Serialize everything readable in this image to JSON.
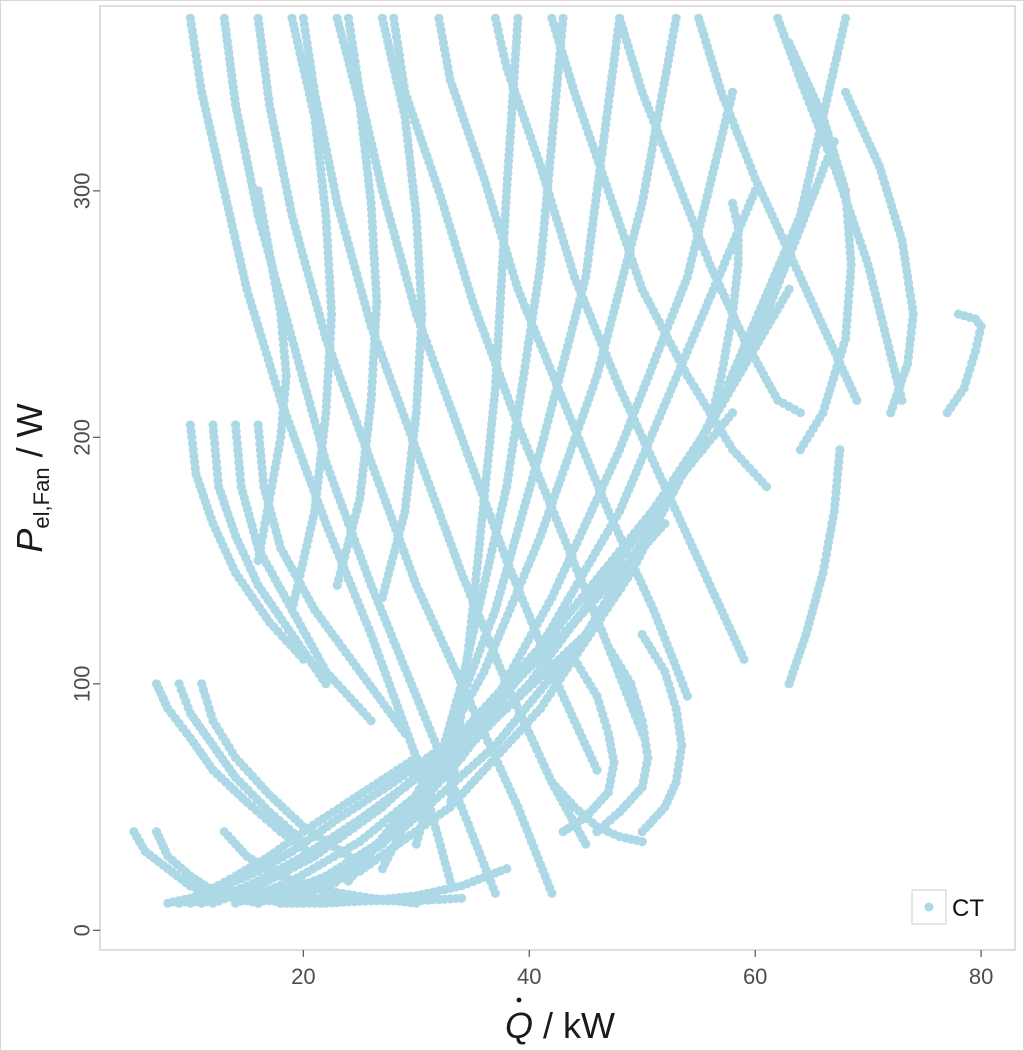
{
  "chart_data": {
    "type": "scatter",
    "xlabel": {
      "base": "Q",
      "rest": " / kW"
    },
    "ylabel": {
      "base": "P",
      "sub": "el,Fan",
      "rest": " / W"
    },
    "xlim": [
      2,
      83
    ],
    "ylim": [
      -8,
      375
    ],
    "xticks": [
      20,
      40,
      60,
      80
    ],
    "yticks": [
      0,
      100,
      200,
      300
    ],
    "grid": false,
    "legend": {
      "position": "bottom-right",
      "entries": [
        {
          "name": "CT",
          "color": "#add8e6"
        }
      ]
    },
    "series": [
      {
        "name": "CT",
        "color": "#add8e6",
        "curves": [
          {
            "x": [
              8,
              10,
              12,
              14,
              17,
              20,
              24,
              30
            ],
            "y": [
              11,
              13,
              17,
              22,
              30,
              40,
              52,
              70
            ]
          },
          {
            "x": [
              9,
              11,
              13,
              16,
              19,
              23,
              28,
              34
            ],
            "y": [
              11,
              13,
              18,
              24,
              32,
              45,
              60,
              80
            ]
          },
          {
            "x": [
              10,
              13,
              16,
              20,
              25,
              31,
              38,
              45
            ],
            "y": [
              11,
              14,
              20,
              30,
              45,
              65,
              90,
              120
            ]
          },
          {
            "x": [
              11,
              14,
              18,
              23,
              29,
              36,
              44,
              52
            ],
            "y": [
              11,
              15,
              24,
              38,
              58,
              88,
              125,
              165
            ]
          },
          {
            "x": [
              12,
              16,
              21,
              27,
              34,
              42,
              50,
              58
            ],
            "y": [
              11,
              18,
              30,
              50,
              80,
              120,
              165,
              210
            ]
          },
          {
            "x": [
              14,
              19,
              25,
              32,
              40,
              48,
              56,
              63
            ],
            "y": [
              11,
              20,
              36,
              62,
              100,
              150,
              205,
              260
            ]
          },
          {
            "x": [
              16,
              22,
              29,
              37,
              45,
              53,
              61,
              67
            ],
            "y": [
              11,
              22,
              42,
              75,
              120,
              180,
              250,
              320
            ]
          },
          {
            "x": [
              18,
              25,
              33,
              41,
              49,
              57,
              64,
              68
            ],
            "y": [
              11,
              24,
              50,
              90,
              145,
              215,
              290,
              370
            ]
          },
          {
            "x": [
              20,
              27,
              34,
              41,
              48,
              54,
              60
            ],
            "y": [
              14,
              35,
              70,
              115,
              170,
              235,
              300
            ]
          },
          {
            "x": [
              22,
              29,
              36,
              42,
              48,
              54,
              58
            ],
            "y": [
              16,
              45,
              85,
              135,
              195,
              265,
              340
            ]
          },
          {
            "x": [
              24,
              30,
              36,
              41,
              46,
              50,
              53
            ],
            "y": [
              20,
              55,
              105,
              160,
              225,
              295,
              370
            ]
          },
          {
            "x": [
              27,
              32,
              37,
              41,
              45,
              48
            ],
            "y": [
              25,
              70,
              130,
              195,
              265,
              370
            ]
          },
          {
            "x": [
              30,
              34,
              38,
              41,
              43
            ],
            "y": [
              35,
              100,
              180,
              270,
              370
            ]
          },
          {
            "x": [
              33,
              35,
              37,
              38,
              39
            ],
            "y": [
              50,
              130,
              220,
              300,
              370
            ]
          },
          {
            "x": [
              10,
              11,
              13,
              15,
              18,
              22,
              26,
              30,
              33
            ],
            "y": [
              370,
              340,
              300,
              260,
              215,
              165,
              120,
              70,
              20
            ]
          },
          {
            "x": [
              13,
              14,
              16,
              19,
              22,
              26,
              30,
              34,
              37
            ],
            "y": [
              370,
              335,
              290,
              240,
              190,
              140,
              95,
              50,
              15
            ]
          },
          {
            "x": [
              16,
              17,
              19,
              22,
              26,
              30,
              35,
              39,
              42
            ],
            "y": [
              370,
              335,
              290,
              240,
              190,
              140,
              90,
              50,
              15
            ]
          },
          {
            "x": [
              20,
              21,
              23,
              26,
              30,
              34,
              38,
              42,
              45
            ],
            "y": [
              370,
              340,
              295,
              245,
              195,
              145,
              100,
              60,
              35
            ]
          },
          {
            "x": [
              24,
              25,
              27,
              30,
              34,
              38,
              42,
              46
            ],
            "y": [
              370,
              340,
              300,
              250,
              200,
              150,
              105,
              65
            ]
          },
          {
            "x": [
              28,
              29,
              32,
              35,
              39,
              43,
              47,
              50
            ],
            "y": [
              370,
              340,
              300,
              255,
              205,
              160,
              115,
              80
            ]
          },
          {
            "x": [
              32,
              33,
              36,
              39,
              43,
              47,
              51,
              54
            ],
            "y": [
              370,
              345,
              305,
              260,
              215,
              170,
              130,
              95
            ]
          },
          {
            "x": [
              37,
              38,
              41,
              44,
              48,
              52,
              56,
              59
            ],
            "y": [
              370,
              350,
              310,
              265,
              220,
              180,
              140,
              110
            ]
          },
          {
            "x": [
              42,
              44,
              47,
              50,
              54,
              58,
              61
            ],
            "y": [
              370,
              340,
              300,
              260,
              225,
              195,
              180
            ]
          },
          {
            "x": [
              48,
              50,
              53,
              56,
              59,
              62,
              64
            ],
            "y": [
              370,
              340,
              305,
              270,
              240,
              215,
              210
            ]
          },
          {
            "x": [
              55,
              57,
              60,
              63,
              66,
              69
            ],
            "y": [
              370,
              340,
              305,
              275,
              245,
              215
            ]
          },
          {
            "x": [
              62,
              64,
              67,
              70,
              73
            ],
            "y": [
              370,
              345,
              310,
              270,
              215
            ]
          },
          {
            "x": [
              10,
              10.5,
              12,
              14,
              17,
              20
            ],
            "y": [
              205,
              185,
              165,
              145,
              125,
              110
            ]
          },
          {
            "x": [
              12,
              12.5,
              14,
              16,
              19,
              22
            ],
            "y": [
              205,
              180,
              160,
              140,
              120,
              100
            ]
          },
          {
            "x": [
              14,
              14.5,
              16,
              19,
              22,
              26
            ],
            "y": [
              205,
              180,
              155,
              130,
              105,
              85
            ]
          },
          {
            "x": [
              16,
              16.5,
              18,
              21,
              25,
              29
            ],
            "y": [
              205,
              180,
              155,
              130,
              105,
              80
            ]
          },
          {
            "x": [
              7,
              8,
              10,
              12,
              15,
              18,
              21
            ],
            "y": [
              100,
              90,
              78,
              65,
              52,
              40,
              30
            ]
          },
          {
            "x": [
              9,
              10,
              12,
              14,
              17,
              20
            ],
            "y": [
              100,
              88,
              75,
              62,
              48,
              36
            ]
          },
          {
            "x": [
              11,
              12,
              14,
              17,
              20,
              24
            ],
            "y": [
              100,
              85,
              70,
              55,
              42,
              30
            ]
          },
          {
            "x": [
              5,
              6,
              8,
              10,
              13,
              16
            ],
            "y": [
              40,
              32,
              25,
              18,
              14,
              11
            ]
          },
          {
            "x": [
              7,
              8,
              10,
              12,
              15,
              19
            ],
            "y": [
              40,
              30,
              22,
              16,
              13,
              11
            ]
          },
          {
            "x": [
              13,
              15,
              18,
              22,
              26,
              30
            ],
            "y": [
              40,
              30,
              22,
              16,
              13,
              11
            ]
          },
          {
            "x": [
              19,
              21,
              22,
              22.5,
              22,
              21,
              19
            ],
            "y": [
              370,
              330,
              290,
              250,
              210,
              170,
              130
            ]
          },
          {
            "x": [
              23,
              25,
              26,
              26.5,
              26,
              25,
              23
            ],
            "y": [
              370,
              335,
              295,
              255,
              215,
              175,
              140
            ]
          },
          {
            "x": [
              27,
              29,
              30,
              30.5,
              30,
              29,
              27
            ],
            "y": [
              370,
              330,
              290,
              250,
              210,
              170,
              135
            ]
          },
          {
            "x": [
              16,
              17,
              18,
              18.5,
              18,
              17,
              16
            ],
            "y": [
              300,
              275,
              250,
              225,
              200,
              175,
              150
            ]
          },
          {
            "x": [
              63,
              66,
              68,
              68.5,
              68,
              66,
              64
            ],
            "y": [
              360,
              330,
              300,
              270,
              240,
              210,
              195
            ]
          },
          {
            "x": [
              68,
              71,
              73,
              74,
              73.5,
              72
            ],
            "y": [
              340,
              310,
              280,
              250,
              230,
              210
            ]
          },
          {
            "x": [
              77,
              78.5,
              79.5,
              80,
              79.5,
              78
            ],
            "y": [
              210,
              220,
              235,
              245,
              248,
              250
            ]
          },
          {
            "x": [
              50,
              52,
              53,
              53.5,
              53,
              52,
              50
            ],
            "y": [
              120,
              105,
              90,
              75,
              60,
              50,
              40
            ]
          },
          {
            "x": [
              47,
              49,
              50,
              50.5,
              50,
              48,
              46
            ],
            "y": [
              115,
              100,
              85,
              70,
              58,
              48,
              40
            ]
          },
          {
            "x": [
              44,
              46,
              47,
              47.5,
              47,
              45,
              43
            ],
            "y": [
              110,
              95,
              80,
              68,
              56,
              46,
              40
            ]
          },
          {
            "x": [
              18,
              22,
              26,
              30,
              34,
              38
            ],
            "y": [
              11,
              11,
              12,
              14,
              18,
              25
            ]
          },
          {
            "x": [
              10,
              14,
              18,
              22,
              26,
              30,
              34
            ],
            "y": [
              18,
              16,
              14,
              13,
              12,
              12,
              13
            ]
          },
          {
            "x": [
              56,
              57,
              58,
              58.5,
              58.5,
              58
            ],
            "y": [
              205,
              225,
              250,
              270,
              285,
              295
            ]
          },
          {
            "x": [
              63,
              64.5,
              66,
              67,
              67.5
            ],
            "y": [
              100,
              120,
              145,
              170,
              195
            ]
          },
          {
            "x": [
              42,
              44,
              46,
              48,
              50
            ],
            "y": [
              60,
              50,
              42,
              38,
              36
            ]
          }
        ]
      }
    ]
  }
}
